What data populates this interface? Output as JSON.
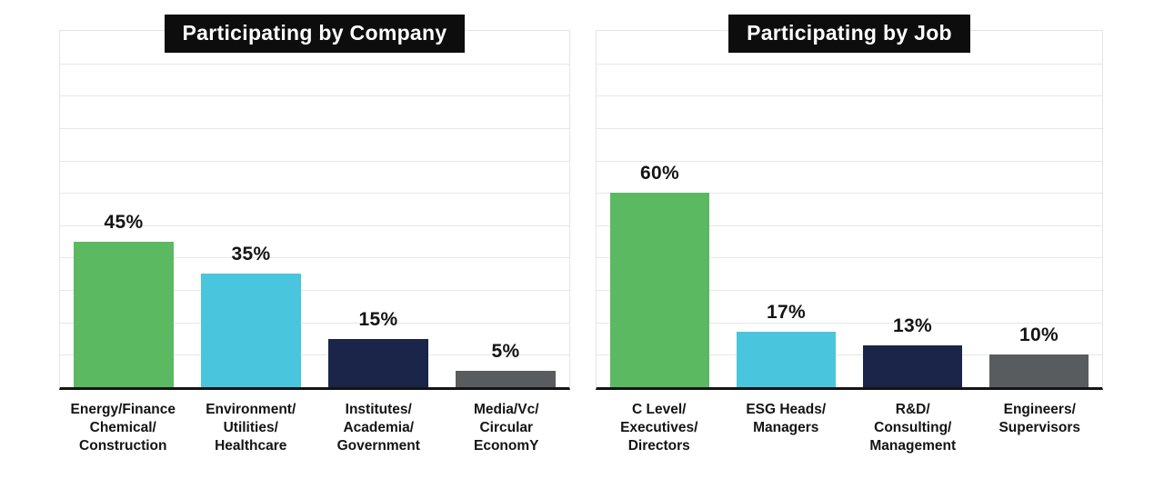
{
  "style": {
    "background": "#ffffff",
    "title_bg": "#0d0d0d",
    "title_color": "#ffffff",
    "grid_color": "#e7e7e7",
    "axis_color": "#141414",
    "label_color": "#141414"
  },
  "chart_data": [
    {
      "type": "bar",
      "title": "Participating by Company",
      "categories": [
        "Energy/Finance Chemical/ Construction",
        "Environment/ Utilities/ Healthcare",
        "Institutes/ Academia/ Government",
        "Media/Vc/ Circular EconomY"
      ],
      "category_lines": [
        [
          "Energy/Finance",
          "Chemical/",
          "Construction"
        ],
        [
          "Environment/",
          "Utilities/",
          "Healthcare"
        ],
        [
          "Institutes/",
          "Academia/",
          "Government"
        ],
        [
          "Media/Vc/",
          "Circular",
          "EconomY"
        ]
      ],
      "values": [
        45,
        35,
        15,
        5
      ],
      "value_labels": [
        "45%",
        "35%",
        "15%",
        "5%"
      ],
      "bar_colors": [
        "#5bb962",
        "#4ac5de",
        "#1b2449",
        "#595c5e"
      ],
      "xlabel": "",
      "ylabel": "",
      "ylim": [
        0,
        110
      ],
      "grid": true,
      "grid_interval_pct": 10,
      "legend_position": "none"
    },
    {
      "type": "bar",
      "title": "Participating by Job",
      "categories": [
        "C Level/ Executives/ Directors",
        "ESG Heads/ Managers",
        "R&D/ Consulting/ Management",
        "Engineers/ Supervisors"
      ],
      "category_lines": [
        [
          "C Level/",
          "Executives/",
          "Directors"
        ],
        [
          "ESG Heads/",
          "Managers"
        ],
        [
          "R&D/",
          "Consulting/",
          "Management"
        ],
        [
          "Engineers/",
          "Supervisors"
        ]
      ],
      "values": [
        60,
        17,
        13,
        10
      ],
      "value_labels": [
        "60%",
        "17%",
        "13%",
        "10%"
      ],
      "bar_colors": [
        "#5bb962",
        "#4ac5de",
        "#1b2449",
        "#595c5e"
      ],
      "xlabel": "",
      "ylabel": "",
      "ylim": [
        0,
        110
      ],
      "grid": true,
      "grid_interval_pct": 10,
      "legend_position": "none"
    }
  ]
}
